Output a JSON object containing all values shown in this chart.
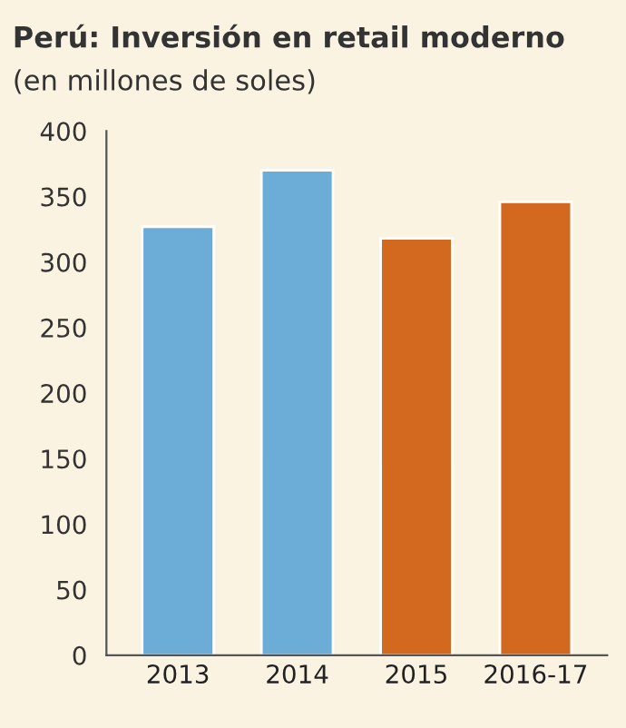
{
  "chart_data": {
    "type": "bar",
    "title": "Perú: Inversión en retail moderno",
    "subtitle": "(en millones de soles)",
    "categories": [
      "2013",
      "2014",
      "2015",
      "2016-17"
    ],
    "values": [
      327,
      370,
      318,
      346
    ],
    "colors": [
      "#6badd6",
      "#6badd6",
      "#d2691e",
      "#d2691e"
    ],
    "ylim": [
      0,
      400
    ],
    "yticks": [
      0,
      50,
      100,
      150,
      200,
      250,
      300,
      350,
      400
    ],
    "grid": false,
    "legend": false
  }
}
